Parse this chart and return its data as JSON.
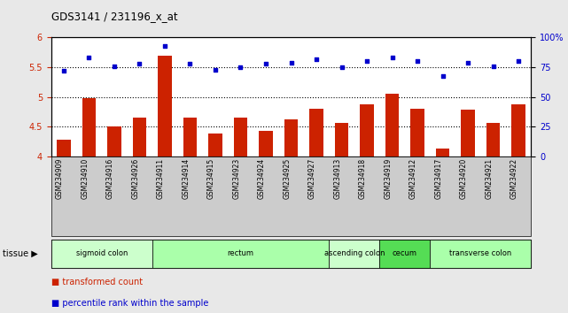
{
  "title": "GDS3141 / 231196_x_at",
  "samples": [
    "GSM234909",
    "GSM234910",
    "GSM234916",
    "GSM234926",
    "GSM234911",
    "GSM234914",
    "GSM234915",
    "GSM234923",
    "GSM234924",
    "GSM234925",
    "GSM234927",
    "GSM234913",
    "GSM234918",
    "GSM234919",
    "GSM234912",
    "GSM234917",
    "GSM234920",
    "GSM234921",
    "GSM234922"
  ],
  "bar_values": [
    4.28,
    4.98,
    4.51,
    4.65,
    5.7,
    4.65,
    4.38,
    4.65,
    4.43,
    4.63,
    4.81,
    4.57,
    4.88,
    5.05,
    4.81,
    4.13,
    4.79,
    4.56,
    4.88
  ],
  "percentile_values": [
    72,
    83,
    76,
    78,
    93,
    78,
    73,
    75,
    78,
    79,
    82,
    75,
    80,
    83,
    80,
    68,
    79,
    76,
    80
  ],
  "bar_color": "#cc2200",
  "dot_color": "#0000cc",
  "ylim_left": [
    4.0,
    6.0
  ],
  "ylim_right": [
    0,
    100
  ],
  "yticks_left": [
    4.0,
    4.5,
    5.0,
    5.5,
    6.0
  ],
  "yticks_right": [
    0,
    25,
    50,
    75,
    100
  ],
  "hlines": [
    4.5,
    5.0,
    5.5
  ],
  "tissue_groups": [
    {
      "label": "sigmoid colon",
      "start": 0,
      "end": 3,
      "color": "#ccffcc"
    },
    {
      "label": "rectum",
      "start": 4,
      "end": 10,
      "color": "#aaffaa"
    },
    {
      "label": "ascending colon",
      "start": 11,
      "end": 12,
      "color": "#ccffcc"
    },
    {
      "label": "cecum",
      "start": 13,
      "end": 14,
      "color": "#55dd55"
    },
    {
      "label": "transverse colon",
      "start": 15,
      "end": 18,
      "color": "#aaffaa"
    }
  ],
  "tissue_label": "tissue",
  "legend_bar_label": "transformed count",
  "legend_dot_label": "percentile rank within the sample",
  "bg_color": "#e8e8e8",
  "xtick_bg": "#cccccc",
  "plot_bg": "#ffffff",
  "spine_color": "#000000"
}
